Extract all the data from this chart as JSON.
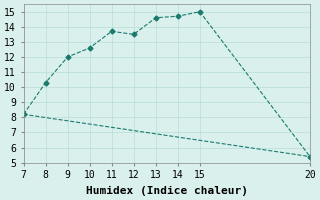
{
  "line1_x": [
    7,
    8,
    9,
    10,
    11,
    12,
    13,
    14,
    15,
    20
  ],
  "line1_y": [
    8.2,
    10.3,
    12.0,
    12.6,
    13.7,
    13.5,
    14.6,
    14.7,
    15.0,
    5.4
  ],
  "line2_x": [
    7,
    20
  ],
  "line2_y": [
    8.2,
    5.4
  ],
  "line_color": "#1a7a6e",
  "bg_color": "#d9f0ec",
  "grid_color": "#b8ddd8",
  "xlabel": "Humidex (Indice chaleur)",
  "xlim": [
    7,
    20
  ],
  "ylim": [
    5,
    15.5
  ],
  "xticks": [
    7,
    8,
    9,
    10,
    11,
    12,
    13,
    14,
    15,
    20
  ],
  "yticks": [
    5,
    6,
    7,
    8,
    9,
    10,
    11,
    12,
    13,
    14,
    15
  ],
  "font_size": 8
}
